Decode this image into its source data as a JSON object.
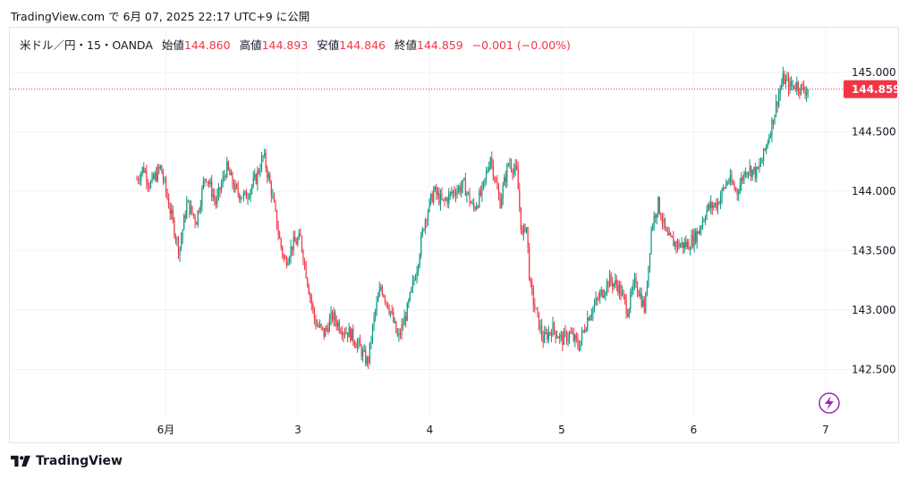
{
  "header": {
    "text": "TradingView.com で 6月 07, 2025 22:17 UTC+9 に公開"
  },
  "legend": {
    "symbol": "米ドル／円・15・OANDA",
    "open_label": "始値",
    "open": "144.860",
    "high_label": "高値",
    "high": "144.893",
    "low_label": "安値",
    "low": "144.846",
    "close_label": "終値",
    "close": "144.859",
    "change": "−0.001 (−0.00%)"
  },
  "footer": {
    "brand": "TradingView"
  },
  "colors": {
    "up": "#089981",
    "down": "#f23645",
    "grid": "#f0f3fa",
    "text": "#131722"
  },
  "chart_data": {
    "type": "candlestick",
    "title": "米ドル／円・15・OANDA",
    "xlabel": "",
    "ylabel": "",
    "ylim": [
      142.0,
      145.25
    ],
    "y_ticks": [
      "145.000",
      "144.500",
      "144.000",
      "143.500",
      "143.000",
      "142.500"
    ],
    "x_ticks": [
      "6月",
      "3",
      "4",
      "5",
      "6",
      "7"
    ],
    "last_price": "144.859",
    "grid": true,
    "close_path": [
      {
        "x": 0.0,
        "y": 144.1
      },
      {
        "x": 0.05,
        "y": 144.2
      },
      {
        "x": 0.1,
        "y": 144.05
      },
      {
        "x": 0.18,
        "y": 144.2
      },
      {
        "x": 0.25,
        "y": 143.85
      },
      {
        "x": 0.32,
        "y": 143.5
      },
      {
        "x": 0.38,
        "y": 143.9
      },
      {
        "x": 0.45,
        "y": 143.75
      },
      {
        "x": 0.52,
        "y": 144.15
      },
      {
        "x": 0.6,
        "y": 143.9
      },
      {
        "x": 0.68,
        "y": 144.2
      },
      {
        "x": 0.75,
        "y": 144.0
      },
      {
        "x": 0.82,
        "y": 143.95
      },
      {
        "x": 0.9,
        "y": 144.1
      },
      {
        "x": 0.96,
        "y": 144.3
      },
      {
        "x": 1.02,
        "y": 144.0
      },
      {
        "x": 1.08,
        "y": 143.6
      },
      {
        "x": 1.12,
        "y": 143.4
      },
      {
        "x": 1.18,
        "y": 143.55
      },
      {
        "x": 1.24,
        "y": 143.6
      },
      {
        "x": 1.3,
        "y": 143.2
      },
      {
        "x": 1.35,
        "y": 142.9
      },
      {
        "x": 1.42,
        "y": 142.8
      },
      {
        "x": 1.48,
        "y": 142.95
      },
      {
        "x": 1.55,
        "y": 142.85
      },
      {
        "x": 1.62,
        "y": 142.8
      },
      {
        "x": 1.68,
        "y": 142.7
      },
      {
        "x": 1.75,
        "y": 142.55
      },
      {
        "x": 1.8,
        "y": 142.95
      },
      {
        "x": 1.85,
        "y": 143.2
      },
      {
        "x": 1.92,
        "y": 143.0
      },
      {
        "x": 1.98,
        "y": 142.75
      },
      {
        "x": 2.05,
        "y": 143.0
      },
      {
        "x": 2.12,
        "y": 143.35
      },
      {
        "x": 2.18,
        "y": 143.75
      },
      {
        "x": 2.25,
        "y": 144.0
      },
      {
        "x": 2.32,
        "y": 143.9
      },
      {
        "x": 2.4,
        "y": 144.0
      },
      {
        "x": 2.48,
        "y": 144.05
      },
      {
        "x": 2.55,
        "y": 143.85
      },
      {
        "x": 2.62,
        "y": 144.0
      },
      {
        "x": 2.68,
        "y": 144.3
      },
      {
        "x": 2.75,
        "y": 143.9
      },
      {
        "x": 2.82,
        "y": 144.25
      },
      {
        "x": 2.88,
        "y": 144.15
      },
      {
        "x": 2.92,
        "y": 143.6
      },
      {
        "x": 2.95,
        "y": 143.75
      },
      {
        "x": 2.98,
        "y": 143.2
      },
      {
        "x": 3.02,
        "y": 143.0
      },
      {
        "x": 3.08,
        "y": 142.75
      },
      {
        "x": 3.15,
        "y": 142.85
      },
      {
        "x": 3.22,
        "y": 142.75
      },
      {
        "x": 3.28,
        "y": 142.8
      },
      {
        "x": 3.35,
        "y": 142.7
      },
      {
        "x": 3.42,
        "y": 142.95
      },
      {
        "x": 3.5,
        "y": 143.1
      },
      {
        "x": 3.58,
        "y": 143.25
      },
      {
        "x": 3.65,
        "y": 143.2
      },
      {
        "x": 3.72,
        "y": 143.0
      },
      {
        "x": 3.78,
        "y": 143.25
      },
      {
        "x": 3.85,
        "y": 143.0
      },
      {
        "x": 3.9,
        "y": 143.7
      },
      {
        "x": 3.95,
        "y": 143.9
      },
      {
        "x": 4.02,
        "y": 143.6
      },
      {
        "x": 4.1,
        "y": 143.55
      },
      {
        "x": 4.18,
        "y": 143.55
      },
      {
        "x": 4.25,
        "y": 143.65
      },
      {
        "x": 4.32,
        "y": 143.85
      },
      {
        "x": 4.4,
        "y": 143.9
      },
      {
        "x": 4.48,
        "y": 144.1
      },
      {
        "x": 4.55,
        "y": 144.0
      },
      {
        "x": 4.62,
        "y": 144.2
      },
      {
        "x": 4.7,
        "y": 144.15
      },
      {
        "x": 4.75,
        "y": 144.3
      },
      {
        "x": 4.82,
        "y": 144.6
      },
      {
        "x": 4.86,
        "y": 144.8
      },
      {
        "x": 4.9,
        "y": 144.95
      },
      {
        "x": 4.95,
        "y": 144.88
      },
      {
        "x": 5.0,
        "y": 144.9
      },
      {
        "x": 5.05,
        "y": 144.85
      },
      {
        "x": 5.09,
        "y": 144.86
      }
    ]
  }
}
